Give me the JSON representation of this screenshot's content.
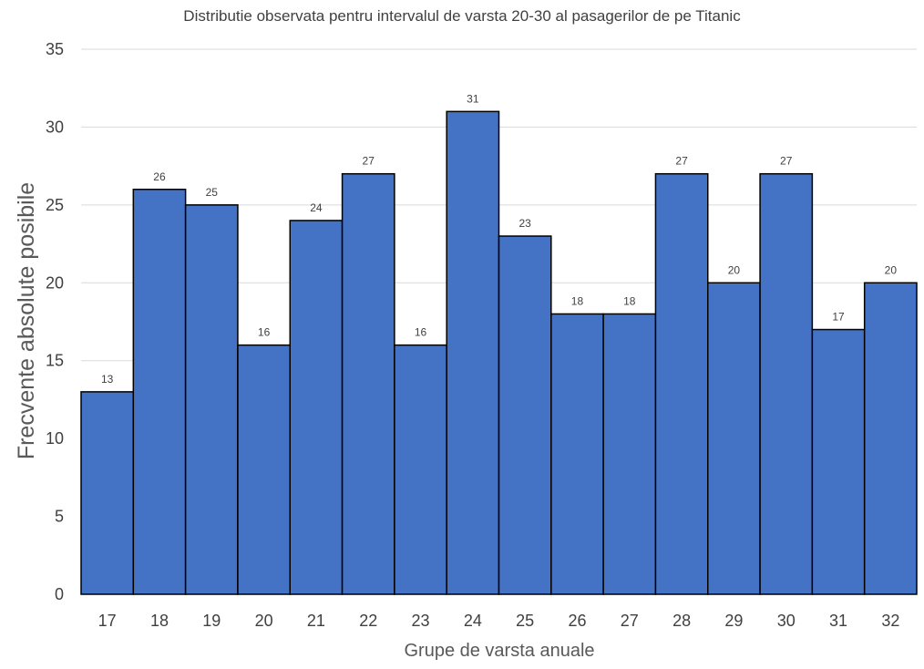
{
  "chart_data": {
    "type": "bar",
    "title": "Distributie observata pentru intervalul de varsta 20-30 al pasagerilor de pe Titanic",
    "xlabel": "Grupe de varsta anuale",
    "ylabel": "Frecvente absolute posibile",
    "categories": [
      "17",
      "18",
      "19",
      "20",
      "21",
      "22",
      "23",
      "24",
      "25",
      "26",
      "27",
      "28",
      "29",
      "30",
      "31",
      "32"
    ],
    "values": [
      13,
      26,
      25,
      16,
      24,
      27,
      16,
      31,
      23,
      18,
      18,
      27,
      20,
      27,
      17,
      20
    ],
    "ylim": [
      0,
      35
    ],
    "yticks": [
      0,
      5,
      10,
      15,
      20,
      25,
      30,
      35
    ],
    "grid": true,
    "bar_color": "#4472c4",
    "bar_edge_color": "#000000",
    "legend": "none"
  }
}
